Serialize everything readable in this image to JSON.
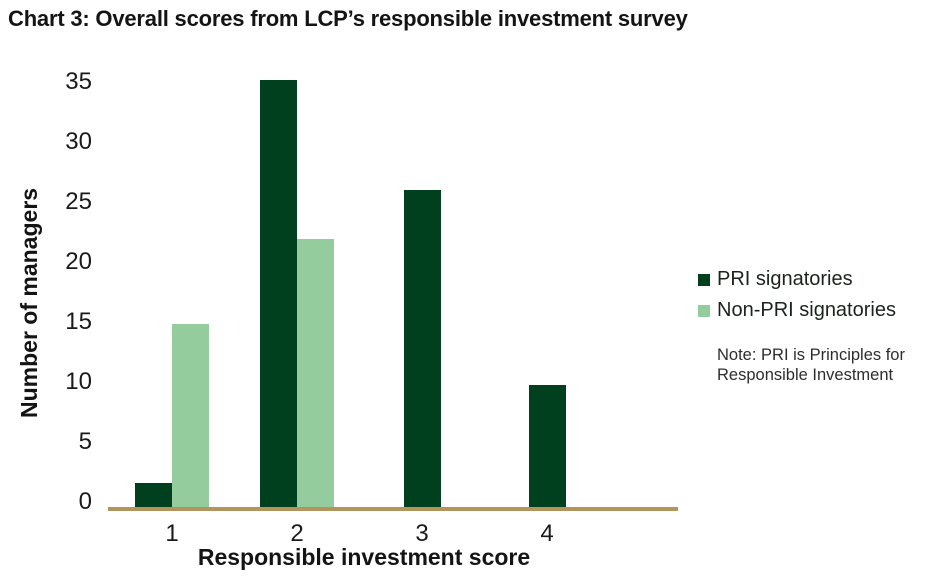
{
  "title": "Chart 3: Overall scores from LCP’s responsible investment survey",
  "note": "Note: PRI is Principles for Responsible Investment",
  "chart_data": {
    "type": "bar",
    "title": "Chart 3: Overall scores from LCP’s responsible investment survey",
    "categories": [
      "1",
      "2",
      "3",
      "4"
    ],
    "series": [
      {
        "name": "PRI signatories",
        "color": "#00401e",
        "values": [
          2,
          35,
          26,
          10
        ]
      },
      {
        "name": "Non-PRI signatories",
        "color": "#94cc9e",
        "values": [
          15,
          22,
          0,
          0
        ]
      }
    ],
    "xlabel": "Responsible investment score",
    "ylabel": "Number of managers",
    "ylim": [
      0,
      35
    ],
    "ytick_step": 5,
    "grid": false,
    "legend_position": "right",
    "axis_line_color": "#b2955c",
    "note": "Note: PRI is Principles for Responsible Investment"
  }
}
